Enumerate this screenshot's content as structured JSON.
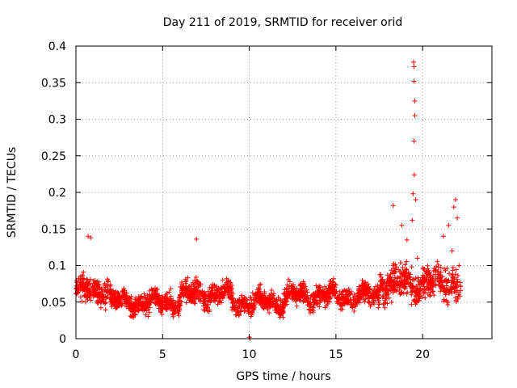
{
  "chart_data": {
    "type": "scatter",
    "title": "Day 211 of 2019, SRMTID for receiver orid",
    "xlabel": "GPS time / hours",
    "ylabel": "SRMTID / TECUs",
    "xlim": [
      0,
      24
    ],
    "ylim": [
      0,
      0.4
    ],
    "grid": true,
    "marker": "+",
    "color": "#ff0000",
    "x_ticks": [
      0,
      5,
      10,
      15,
      20
    ],
    "x_tick_labels": [
      "0",
      "5",
      "10",
      "15",
      "20"
    ],
    "y_ticks": [
      0,
      0.05,
      0.1,
      0.15,
      0.2,
      0.25,
      0.3,
      0.35,
      0.4
    ],
    "y_tick_labels": [
      "0",
      "0.05",
      "0.1",
      "0.15",
      "0.2",
      "0.25",
      "0.3",
      "0.35",
      "0.4"
    ],
    "series": [
      {
        "name": "SRMTID",
        "note": "approximate envelope of dense scatter; individual points generated from these segments",
        "segments": [
          {
            "x_start": 0.0,
            "x_end": 2.0,
            "y_mean": 0.065,
            "y_spread": 0.03
          },
          {
            "x_start": 2.0,
            "x_end": 6.0,
            "y_mean": 0.05,
            "y_spread": 0.022
          },
          {
            "x_start": 6.0,
            "x_end": 9.0,
            "y_mean": 0.06,
            "y_spread": 0.025
          },
          {
            "x_start": 9.0,
            "x_end": 12.0,
            "y_mean": 0.05,
            "y_spread": 0.02
          },
          {
            "x_start": 12.0,
            "x_end": 17.5,
            "y_mean": 0.058,
            "y_spread": 0.022
          },
          {
            "x_start": 17.5,
            "x_end": 22.2,
            "y_mean": 0.075,
            "y_spread": 0.035
          }
        ],
        "highlights": [
          {
            "x": 0.7,
            "y": 0.14
          },
          {
            "x": 0.85,
            "y": 0.138
          },
          {
            "x": 6.95,
            "y": 0.136
          },
          {
            "x": 10.0,
            "y": 0.002
          },
          {
            "x": 10.05,
            "y": 0.0
          },
          {
            "x": 18.3,
            "y": 0.182
          },
          {
            "x": 18.8,
            "y": 0.155
          },
          {
            "x": 19.1,
            "y": 0.135
          },
          {
            "x": 19.4,
            "y": 0.162
          },
          {
            "x": 19.45,
            "y": 0.198
          },
          {
            "x": 19.5,
            "y": 0.27
          },
          {
            "x": 19.52,
            "y": 0.224
          },
          {
            "x": 19.55,
            "y": 0.305
          },
          {
            "x": 19.55,
            "y": 0.325
          },
          {
            "x": 19.5,
            "y": 0.352
          },
          {
            "x": 19.5,
            "y": 0.372
          },
          {
            "x": 19.48,
            "y": 0.378
          },
          {
            "x": 19.6,
            "y": 0.19
          },
          {
            "x": 19.7,
            "y": 0.11
          },
          {
            "x": 20.1,
            "y": 0.095
          },
          {
            "x": 21.2,
            "y": 0.14
          },
          {
            "x": 21.5,
            "y": 0.155
          },
          {
            "x": 21.8,
            "y": 0.18
          },
          {
            "x": 21.9,
            "y": 0.19
          },
          {
            "x": 22.0,
            "y": 0.165
          },
          {
            "x": 21.7,
            "y": 0.12
          },
          {
            "x": 22.1,
            "y": 0.1
          }
        ]
      }
    ]
  }
}
